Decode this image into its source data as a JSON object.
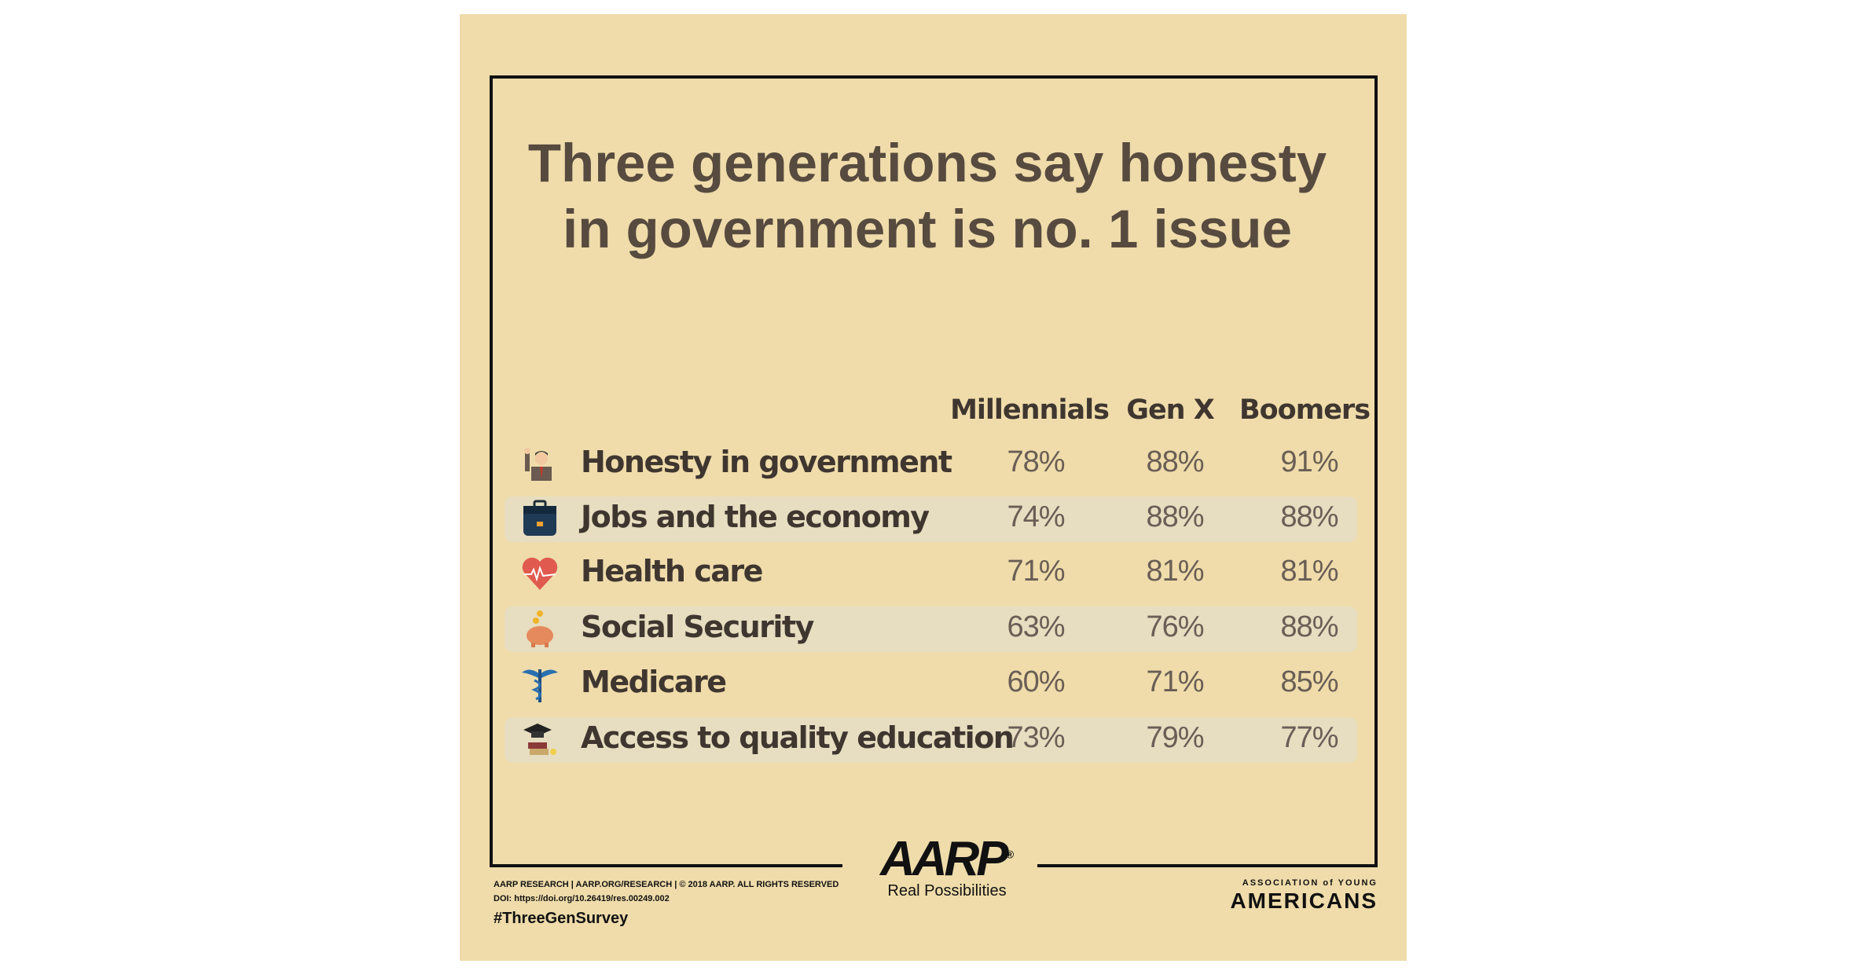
{
  "title": "Three generations say honesty in government is no. 1 issue",
  "title_lines": [
    "Three generations say honesty",
    "in government is no. 1 issue"
  ],
  "columns": [
    "Millennials",
    "Gen X",
    "Boomers"
  ],
  "rows": [
    {
      "icon": "politician-icon",
      "label": "Honesty in government",
      "values": [
        "78%",
        "88%",
        "91%"
      ]
    },
    {
      "icon": "briefcase-icon",
      "label": "Jobs and the economy",
      "values": [
        "74%",
        "88%",
        "88%"
      ]
    },
    {
      "icon": "heart-pulse-icon",
      "label": "Health care",
      "values": [
        "71%",
        "81%",
        "81%"
      ]
    },
    {
      "icon": "piggy-bank-icon",
      "label": "Social Security",
      "values": [
        "63%",
        "76%",
        "88%"
      ]
    },
    {
      "icon": "caduceus-icon",
      "label": "Medicare",
      "values": [
        "60%",
        "71%",
        "85%"
      ]
    },
    {
      "icon": "graduation-cap-icon",
      "label": "Access to quality education",
      "values": [
        "73%",
        "79%",
        "77%"
      ]
    }
  ],
  "footer": {
    "credit": "AARP RESEARCH  |  AARP.ORG/RESEARCH  |  © 2018 AARP. ALL RIGHTS RESERVED",
    "doi": "DOI:  https://doi.org/10.26419/res.00249.002",
    "hashtag": "#ThreeGenSurvey",
    "logo": "AARP",
    "tagline": "Real Possibilities",
    "partner_line1": "ASSOCIATION of YOUNG",
    "partner_line2": "AMERICANS"
  },
  "colors": {
    "background": "#efdcaa",
    "stripe": "#e7ddc0",
    "title": "#574a3f",
    "text": "#3f3630",
    "value": "#6a5e56"
  }
}
